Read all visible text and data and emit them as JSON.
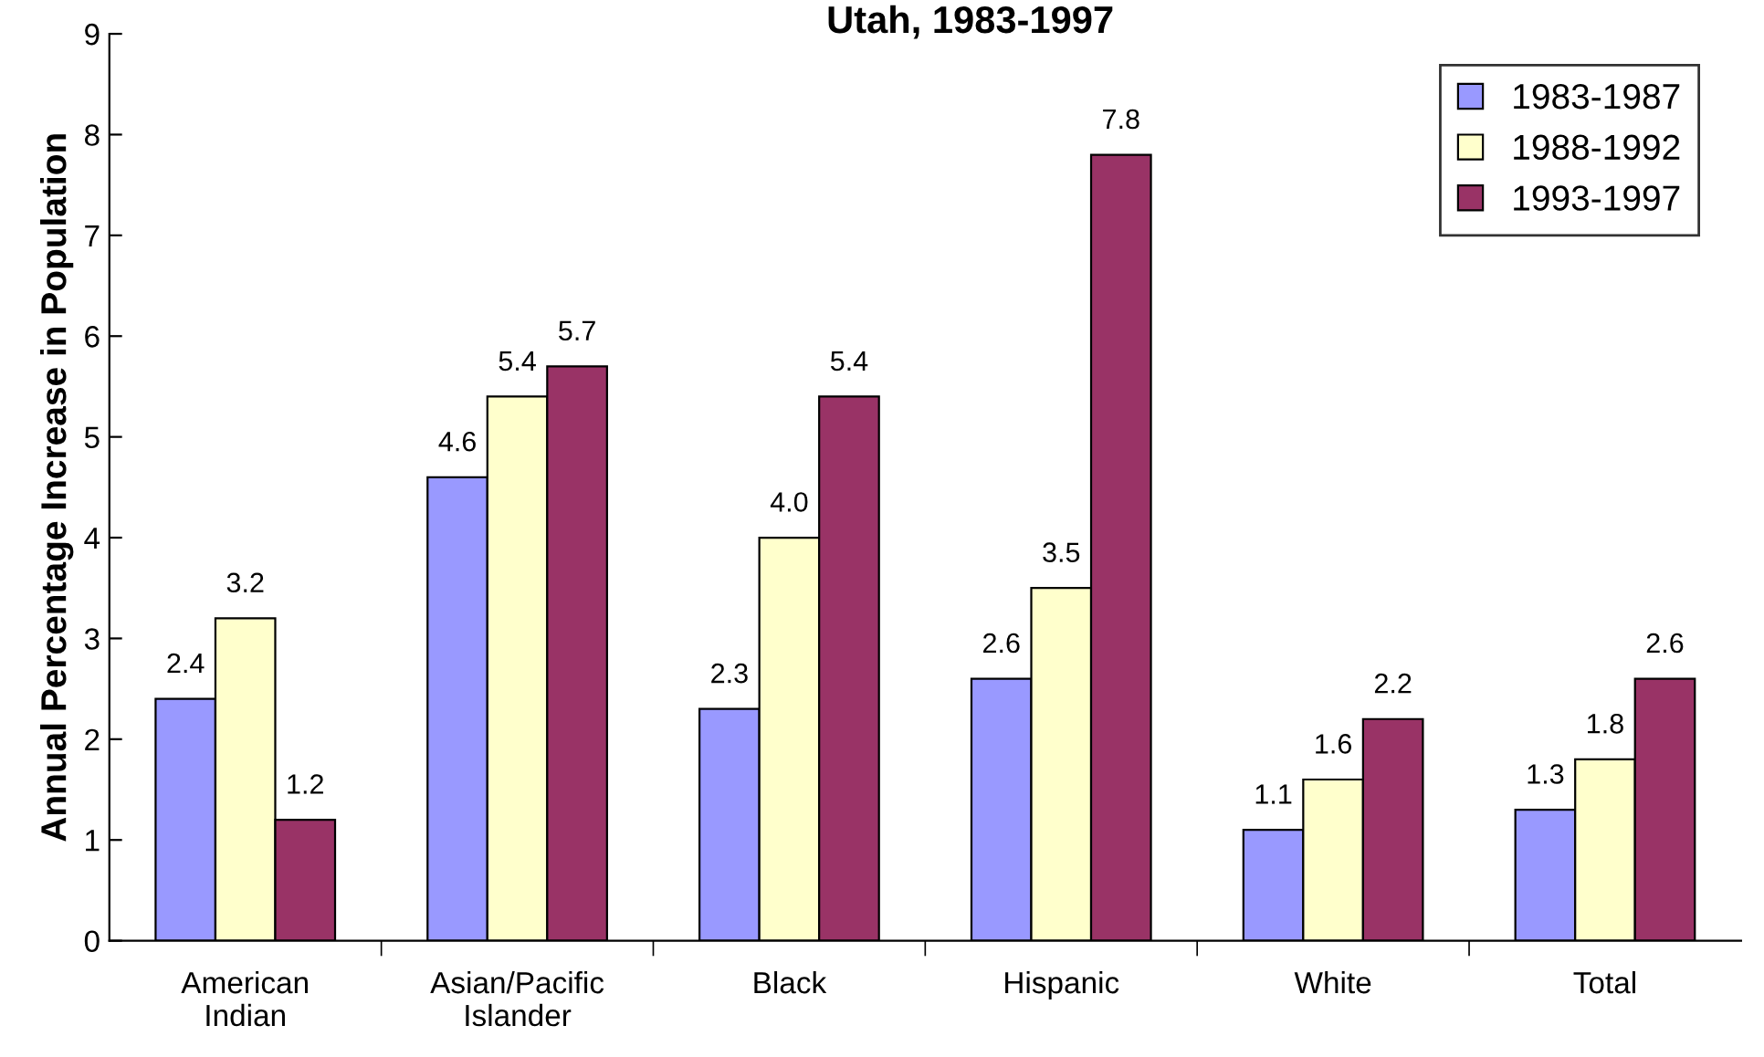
{
  "chart_data": {
    "type": "bar",
    "title": "Utah, 1983-1997",
    "ylabel": "Annual Percentage Increase in Population",
    "categories": [
      "American\nIndian",
      "Asian/Pacific\nIslander",
      "Black",
      "Hispanic",
      "White",
      "Total"
    ],
    "series": [
      {
        "name": "1983-1987",
        "color": "#9999ff",
        "values": [
          2.4,
          4.6,
          2.3,
          2.6,
          1.1,
          1.3
        ],
        "value_labels": [
          "2.4",
          "4.6",
          "2.3",
          "2.6",
          "1.1",
          "1.3"
        ]
      },
      {
        "name": "1988-1992",
        "color": "#ffffcc",
        "values": [
          3.2,
          5.4,
          4.0,
          3.5,
          1.6,
          1.8
        ],
        "value_labels": [
          "3.2",
          "5.4",
          "4.0",
          "3.5",
          "1.6",
          "1.8"
        ]
      },
      {
        "name": "1993-1997",
        "color": "#993366",
        "values": [
          1.2,
          5.7,
          5.4,
          7.8,
          2.2,
          2.6
        ],
        "value_labels": [
          "1.2",
          "5.7",
          "5.4",
          "7.8",
          "2.2",
          "2.6"
        ]
      }
    ],
    "ylim": [
      0,
      9
    ],
    "yticks": [
      0,
      1,
      2,
      3,
      4,
      5,
      6,
      7,
      8,
      9
    ],
    "legend": "top right",
    "grid": false
  }
}
